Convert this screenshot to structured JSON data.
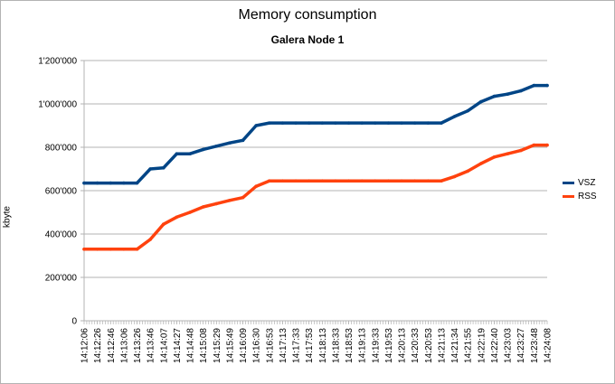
{
  "chart_data": {
    "type": "line",
    "title": "Memory consumption",
    "subtitle": "Galera Node 1",
    "xlabel": "",
    "ylabel": "kbyte",
    "ylim": [
      0,
      1200000
    ],
    "y_ticks": [
      "0",
      "200'000",
      "400'000",
      "600'000",
      "800'000",
      "1'000'000",
      "1'200'000"
    ],
    "y_tick_values": [
      0,
      200000,
      400000,
      600000,
      800000,
      1000000,
      1200000
    ],
    "x": [
      "14:12:06",
      "14:12:26",
      "14:12:46",
      "14:13:06",
      "14:13:26",
      "14:13:46",
      "14:14:07",
      "14:14:27",
      "14:14:48",
      "14:15:08",
      "14:15:29",
      "14:15:49",
      "14:16:09",
      "14:16:30",
      "14:16:53",
      "14:17:13",
      "14:17:33",
      "14:17:53",
      "14:18:13",
      "14:18:33",
      "14:18:53",
      "14:19:13",
      "14:19:33",
      "14:19:53",
      "14:20:13",
      "14:20:33",
      "14:20:53",
      "14:21:13",
      "14:21:34",
      "14:21:55",
      "14:22:19",
      "14:22:40",
      "14:23:03",
      "14:23:27",
      "14:23:48",
      "14:24:08"
    ],
    "grid": true,
    "legend_position": "right",
    "series": [
      {
        "name": "VSZ",
        "color": "#004586",
        "values": [
          635000,
          635000,
          635000,
          635000,
          635000,
          700000,
          705000,
          770000,
          770000,
          790000,
          805000,
          820000,
          832000,
          900000,
          912000,
          912000,
          912000,
          912000,
          912000,
          912000,
          912000,
          912000,
          912000,
          912000,
          912000,
          912000,
          912000,
          912000,
          942000,
          968000,
          1010000,
          1035000,
          1045000,
          1060000,
          1085000,
          1085000
        ]
      },
      {
        "name": "RSS",
        "color": "#ff420e",
        "values": [
          330000,
          330000,
          330000,
          330000,
          330000,
          375000,
          445000,
          478000,
          500000,
          525000,
          540000,
          555000,
          568000,
          620000,
          645000,
          645000,
          645000,
          645000,
          645000,
          645000,
          645000,
          645000,
          645000,
          645000,
          645000,
          645000,
          645000,
          645000,
          665000,
          690000,
          725000,
          755000,
          770000,
          785000,
          810000,
          810000
        ]
      }
    ]
  }
}
